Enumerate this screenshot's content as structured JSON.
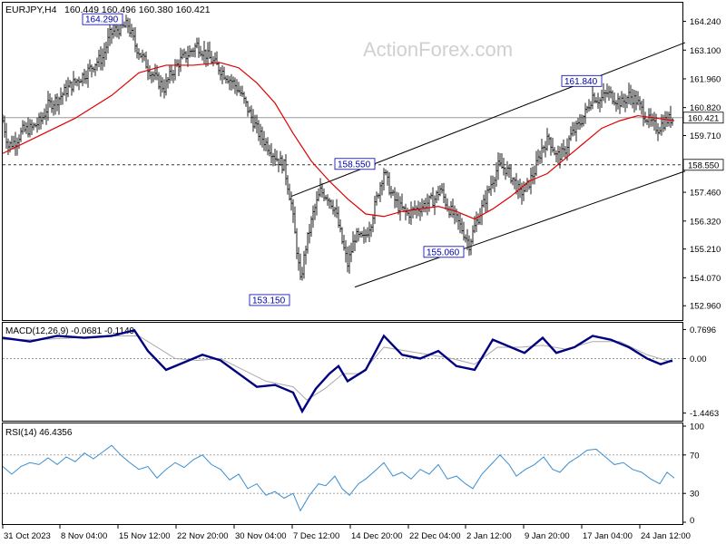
{
  "chart_data": {
    "type": "ohlc-line",
    "title": "EURJPY,H4",
    "ohlc_text": "160.449 160.496 160.380 160.421",
    "watermark": "ActionForex.com",
    "colors": {
      "bars": "#1f1f1f",
      "ma": "#e00000",
      "macd": "#000080",
      "signal": "#aaaaaa",
      "rsi": "#3b8ed0",
      "label_border": "#0000aa",
      "grid": "#888888"
    },
    "price_axis": {
      "range": [
        152.5,
        164.8
      ],
      "ticks": [
        "164.240",
        "163.100",
        "161.960",
        "160.820",
        "159.710",
        "157.460",
        "156.320",
        "155.210",
        "154.070",
        "152.960"
      ]
    },
    "x_labels": [
      "31 Oct 2023",
      "8 Nov 04:00",
      "15 Nov 12:00",
      "22 Nov 20:00",
      "30 Nov 04:00",
      "7 Dec 12:00",
      "14 Dec 20:00",
      "22 Dec 04:00",
      "2 Jan 12:00",
      "9 Jan 20:00",
      "17 Jan 04:00",
      "24 Jan 12:00"
    ],
    "current_price": "160.421",
    "support_level": "158.550",
    "annotations": [
      "164.290",
      "158.550",
      "161.840",
      "155.060",
      "153.150"
    ],
    "close_series": [
      {
        "x": 0,
        "y": 160.3
      },
      {
        "x": 6,
        "y": 159.3
      },
      {
        "x": 14,
        "y": 159.5
      },
      {
        "x": 22,
        "y": 159.9
      },
      {
        "x": 32,
        "y": 160.0
      },
      {
        "x": 42,
        "y": 160.3
      },
      {
        "x": 50,
        "y": 160.9
      },
      {
        "x": 62,
        "y": 161.2
      },
      {
        "x": 72,
        "y": 161.6
      },
      {
        "x": 82,
        "y": 161.9
      },
      {
        "x": 92,
        "y": 162.2
      },
      {
        "x": 102,
        "y": 162.6
      },
      {
        "x": 110,
        "y": 162.8
      },
      {
        "x": 118,
        "y": 163.7
      },
      {
        "x": 124,
        "y": 163.9
      },
      {
        "x": 132,
        "y": 164.0
      },
      {
        "x": 138,
        "y": 164.1
      },
      {
        "x": 146,
        "y": 163.3
      },
      {
        "x": 154,
        "y": 162.8
      },
      {
        "x": 162,
        "y": 162.3
      },
      {
        "x": 170,
        "y": 161.9
      },
      {
        "x": 178,
        "y": 161.6
      },
      {
        "x": 186,
        "y": 162.2
      },
      {
        "x": 196,
        "y": 162.7
      },
      {
        "x": 206,
        "y": 163.0
      },
      {
        "x": 214,
        "y": 163.3
      },
      {
        "x": 222,
        "y": 163.0
      },
      {
        "x": 230,
        "y": 162.7
      },
      {
        "x": 238,
        "y": 162.4
      },
      {
        "x": 246,
        "y": 162.1
      },
      {
        "x": 254,
        "y": 161.8
      },
      {
        "x": 262,
        "y": 161.4
      },
      {
        "x": 272,
        "y": 160.6
      },
      {
        "x": 282,
        "y": 159.8
      },
      {
        "x": 292,
        "y": 159.3
      },
      {
        "x": 302,
        "y": 158.8
      },
      {
        "x": 310,
        "y": 158.5
      },
      {
        "x": 318,
        "y": 157.0
      },
      {
        "x": 324,
        "y": 155.2
      },
      {
        "x": 328,
        "y": 153.9
      },
      {
        "x": 334,
        "y": 155.3
      },
      {
        "x": 342,
        "y": 156.6
      },
      {
        "x": 350,
        "y": 157.5
      },
      {
        "x": 358,
        "y": 157.3
      },
      {
        "x": 366,
        "y": 156.8
      },
      {
        "x": 374,
        "y": 155.5
      },
      {
        "x": 380,
        "y": 154.6
      },
      {
        "x": 388,
        "y": 155.7
      },
      {
        "x": 398,
        "y": 155.6
      },
      {
        "x": 406,
        "y": 156.3
      },
      {
        "x": 414,
        "y": 157.5
      },
      {
        "x": 420,
        "y": 158.3
      },
      {
        "x": 428,
        "y": 157.4
      },
      {
        "x": 436,
        "y": 156.9
      },
      {
        "x": 446,
        "y": 156.6
      },
      {
        "x": 456,
        "y": 156.8
      },
      {
        "x": 466,
        "y": 157.0
      },
      {
        "x": 476,
        "y": 157.2
      },
      {
        "x": 482,
        "y": 157.6
      },
      {
        "x": 490,
        "y": 156.9
      },
      {
        "x": 498,
        "y": 156.5
      },
      {
        "x": 506,
        "y": 156.0
      },
      {
        "x": 514,
        "y": 155.4
      },
      {
        "x": 522,
        "y": 156.3
      },
      {
        "x": 530,
        "y": 157.0
      },
      {
        "x": 538,
        "y": 157.8
      },
      {
        "x": 546,
        "y": 158.5
      },
      {
        "x": 554,
        "y": 158.4
      },
      {
        "x": 562,
        "y": 158.0
      },
      {
        "x": 570,
        "y": 157.4
      },
      {
        "x": 578,
        "y": 157.7
      },
      {
        "x": 586,
        "y": 158.3
      },
      {
        "x": 594,
        "y": 159.2
      },
      {
        "x": 602,
        "y": 159.6
      },
      {
        "x": 610,
        "y": 158.9
      },
      {
        "x": 618,
        "y": 159.0
      },
      {
        "x": 626,
        "y": 159.7
      },
      {
        "x": 634,
        "y": 160.1
      },
      {
        "x": 642,
        "y": 160.6
      },
      {
        "x": 650,
        "y": 161.3
      },
      {
        "x": 658,
        "y": 161.1
      },
      {
        "x": 666,
        "y": 161.4
      },
      {
        "x": 674,
        "y": 161.2
      },
      {
        "x": 682,
        "y": 161.0
      },
      {
        "x": 690,
        "y": 161.3
      },
      {
        "x": 698,
        "y": 161.1
      },
      {
        "x": 706,
        "y": 160.6
      },
      {
        "x": 714,
        "y": 160.2
      },
      {
        "x": 722,
        "y": 160.0
      },
      {
        "x": 730,
        "y": 160.3
      },
      {
        "x": 738,
        "y": 160.4
      }
    ],
    "ma_series": [
      {
        "x": 0,
        "y": 159.0
      },
      {
        "x": 40,
        "y": 159.7
      },
      {
        "x": 80,
        "y": 160.4
      },
      {
        "x": 120,
        "y": 161.3
      },
      {
        "x": 150,
        "y": 162.2
      },
      {
        "x": 180,
        "y": 162.5
      },
      {
        "x": 210,
        "y": 162.5
      },
      {
        "x": 240,
        "y": 162.6
      },
      {
        "x": 260,
        "y": 162.4
      },
      {
        "x": 280,
        "y": 161.8
      },
      {
        "x": 300,
        "y": 161.0
      },
      {
        "x": 320,
        "y": 159.8
      },
      {
        "x": 340,
        "y": 158.7
      },
      {
        "x": 360,
        "y": 157.9
      },
      {
        "x": 380,
        "y": 157.2
      },
      {
        "x": 400,
        "y": 156.6
      },
      {
        "x": 420,
        "y": 156.5
      },
      {
        "x": 440,
        "y": 156.7
      },
      {
        "x": 460,
        "y": 156.8
      },
      {
        "x": 480,
        "y": 156.9
      },
      {
        "x": 500,
        "y": 156.7
      },
      {
        "x": 520,
        "y": 156.4
      },
      {
        "x": 540,
        "y": 156.8
      },
      {
        "x": 560,
        "y": 157.3
      },
      {
        "x": 580,
        "y": 157.9
      },
      {
        "x": 600,
        "y": 158.2
      },
      {
        "x": 620,
        "y": 158.8
      },
      {
        "x": 640,
        "y": 159.4
      },
      {
        "x": 660,
        "y": 160.0
      },
      {
        "x": 680,
        "y": 160.3
      },
      {
        "x": 700,
        "y": 160.5
      },
      {
        "x": 720,
        "y": 160.4
      },
      {
        "x": 740,
        "y": 160.3
      }
    ],
    "channel_lines": [
      {
        "name": "channel-upper",
        "x1": 318,
        "y1": 157.3,
        "x2": 752,
        "y2": 163.4
      },
      {
        "name": "channel-lower",
        "x1": 388,
        "y1": 153.7,
        "x2": 752,
        "y2": 158.3
      }
    ],
    "macd": {
      "label": "MACD(12,26,9) -0.0681 -0.1149",
      "ticks": [
        "0.7696",
        "0.00",
        "-1.4463"
      ],
      "range": [
        -1.6,
        0.9
      ],
      "main": [
        {
          "x": 0,
          "y": 0.55
        },
        {
          "x": 30,
          "y": 0.45
        },
        {
          "x": 60,
          "y": 0.6
        },
        {
          "x": 90,
          "y": 0.55
        },
        {
          "x": 120,
          "y": 0.6
        },
        {
          "x": 145,
          "y": 0.75
        },
        {
          "x": 160,
          "y": 0.2
        },
        {
          "x": 180,
          "y": -0.3
        },
        {
          "x": 200,
          "y": -0.1
        },
        {
          "x": 220,
          "y": 0.1
        },
        {
          "x": 240,
          "y": -0.05
        },
        {
          "x": 260,
          "y": -0.4
        },
        {
          "x": 280,
          "y": -0.75
        },
        {
          "x": 300,
          "y": -0.7
        },
        {
          "x": 320,
          "y": -0.9
        },
        {
          "x": 330,
          "y": -1.4
        },
        {
          "x": 345,
          "y": -0.8
        },
        {
          "x": 360,
          "y": -0.4
        },
        {
          "x": 370,
          "y": -0.2
        },
        {
          "x": 380,
          "y": -0.6
        },
        {
          "x": 400,
          "y": -0.3
        },
        {
          "x": 420,
          "y": 0.6
        },
        {
          "x": 440,
          "y": 0.1
        },
        {
          "x": 460,
          "y": 0.0
        },
        {
          "x": 480,
          "y": 0.2
        },
        {
          "x": 500,
          "y": -0.2
        },
        {
          "x": 520,
          "y": -0.3
        },
        {
          "x": 540,
          "y": 0.5
        },
        {
          "x": 560,
          "y": 0.3
        },
        {
          "x": 575,
          "y": 0.15
        },
        {
          "x": 595,
          "y": 0.55
        },
        {
          "x": 610,
          "y": 0.15
        },
        {
          "x": 630,
          "y": 0.3
        },
        {
          "x": 650,
          "y": 0.6
        },
        {
          "x": 670,
          "y": 0.5
        },
        {
          "x": 690,
          "y": 0.3
        },
        {
          "x": 710,
          "y": 0.0
        },
        {
          "x": 725,
          "y": -0.15
        },
        {
          "x": 738,
          "y": -0.05
        }
      ],
      "signal": [
        {
          "x": 0,
          "y": 0.5
        },
        {
          "x": 40,
          "y": 0.5
        },
        {
          "x": 80,
          "y": 0.55
        },
        {
          "x": 120,
          "y": 0.6
        },
        {
          "x": 150,
          "y": 0.6
        },
        {
          "x": 170,
          "y": 0.3
        },
        {
          "x": 190,
          "y": 0.0
        },
        {
          "x": 215,
          "y": -0.05
        },
        {
          "x": 240,
          "y": 0.0
        },
        {
          "x": 265,
          "y": -0.3
        },
        {
          "x": 290,
          "y": -0.6
        },
        {
          "x": 320,
          "y": -0.75
        },
        {
          "x": 335,
          "y": -1.1
        },
        {
          "x": 355,
          "y": -0.8
        },
        {
          "x": 375,
          "y": -0.4
        },
        {
          "x": 395,
          "y": -0.4
        },
        {
          "x": 420,
          "y": 0.3
        },
        {
          "x": 445,
          "y": 0.2
        },
        {
          "x": 470,
          "y": 0.1
        },
        {
          "x": 495,
          "y": 0.0
        },
        {
          "x": 520,
          "y": -0.15
        },
        {
          "x": 545,
          "y": 0.3
        },
        {
          "x": 570,
          "y": 0.3
        },
        {
          "x": 595,
          "y": 0.35
        },
        {
          "x": 620,
          "y": 0.25
        },
        {
          "x": 650,
          "y": 0.45
        },
        {
          "x": 680,
          "y": 0.45
        },
        {
          "x": 710,
          "y": 0.1
        },
        {
          "x": 738,
          "y": -0.1
        }
      ]
    },
    "rsi": {
      "label": "RSI(14) 46.4356",
      "ticks": [
        "100",
        "70",
        "30",
        "0"
      ],
      "range": [
        0,
        100
      ],
      "values": [
        {
          "x": 0,
          "y": 58
        },
        {
          "x": 10,
          "y": 50
        },
        {
          "x": 20,
          "y": 58
        },
        {
          "x": 30,
          "y": 62
        },
        {
          "x": 40,
          "y": 60
        },
        {
          "x": 50,
          "y": 67
        },
        {
          "x": 60,
          "y": 60
        },
        {
          "x": 70,
          "y": 68
        },
        {
          "x": 80,
          "y": 63
        },
        {
          "x": 90,
          "y": 72
        },
        {
          "x": 100,
          "y": 66
        },
        {
          "x": 110,
          "y": 73
        },
        {
          "x": 120,
          "y": 80
        },
        {
          "x": 130,
          "y": 70
        },
        {
          "x": 140,
          "y": 62
        },
        {
          "x": 150,
          "y": 55
        },
        {
          "x": 160,
          "y": 58
        },
        {
          "x": 170,
          "y": 46
        },
        {
          "x": 180,
          "y": 55
        },
        {
          "x": 190,
          "y": 62
        },
        {
          "x": 200,
          "y": 57
        },
        {
          "x": 210,
          "y": 65
        },
        {
          "x": 220,
          "y": 70
        },
        {
          "x": 230,
          "y": 60
        },
        {
          "x": 240,
          "y": 55
        },
        {
          "x": 250,
          "y": 44
        },
        {
          "x": 260,
          "y": 50
        },
        {
          "x": 270,
          "y": 35
        },
        {
          "x": 280,
          "y": 40
        },
        {
          "x": 290,
          "y": 28
        },
        {
          "x": 300,
          "y": 32
        },
        {
          "x": 310,
          "y": 25
        },
        {
          "x": 320,
          "y": 30
        },
        {
          "x": 328,
          "y": 12
        },
        {
          "x": 338,
          "y": 28
        },
        {
          "x": 348,
          "y": 40
        },
        {
          "x": 356,
          "y": 38
        },
        {
          "x": 366,
          "y": 48
        },
        {
          "x": 374,
          "y": 35
        },
        {
          "x": 382,
          "y": 28
        },
        {
          "x": 392,
          "y": 40
        },
        {
          "x": 400,
          "y": 45
        },
        {
          "x": 412,
          "y": 55
        },
        {
          "x": 420,
          "y": 62
        },
        {
          "x": 430,
          "y": 48
        },
        {
          "x": 440,
          "y": 52
        },
        {
          "x": 450,
          "y": 45
        },
        {
          "x": 460,
          "y": 55
        },
        {
          "x": 470,
          "y": 50
        },
        {
          "x": 480,
          "y": 60
        },
        {
          "x": 490,
          "y": 45
        },
        {
          "x": 500,
          "y": 48
        },
        {
          "x": 510,
          "y": 40
        },
        {
          "x": 518,
          "y": 35
        },
        {
          "x": 528,
          "y": 50
        },
        {
          "x": 538,
          "y": 60
        },
        {
          "x": 548,
          "y": 70
        },
        {
          "x": 558,
          "y": 60
        },
        {
          "x": 566,
          "y": 48
        },
        {
          "x": 576,
          "y": 55
        },
        {
          "x": 586,
          "y": 60
        },
        {
          "x": 596,
          "y": 68
        },
        {
          "x": 606,
          "y": 55
        },
        {
          "x": 614,
          "y": 52
        },
        {
          "x": 624,
          "y": 62
        },
        {
          "x": 634,
          "y": 68
        },
        {
          "x": 644,
          "y": 75
        },
        {
          "x": 654,
          "y": 76
        },
        {
          "x": 664,
          "y": 68
        },
        {
          "x": 674,
          "y": 60
        },
        {
          "x": 684,
          "y": 62
        },
        {
          "x": 694,
          "y": 55
        },
        {
          "x": 704,
          "y": 52
        },
        {
          "x": 714,
          "y": 45
        },
        {
          "x": 724,
          "y": 40
        },
        {
          "x": 732,
          "y": 52
        },
        {
          "x": 740,
          "y": 46
        }
      ]
    }
  }
}
